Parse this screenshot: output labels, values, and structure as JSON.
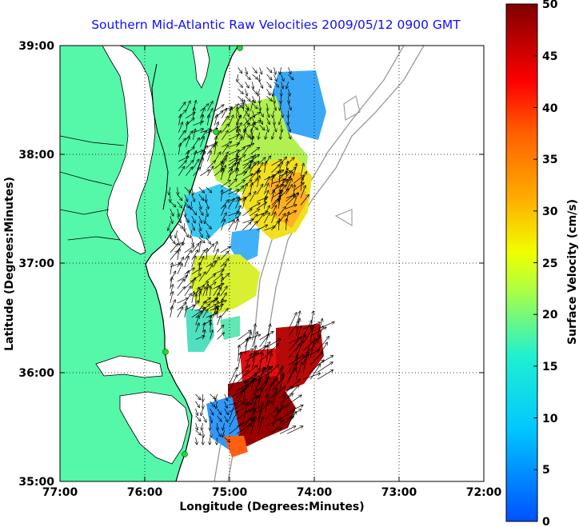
{
  "title": "Southern Mid-Atlantic Raw Velocities 2009/05/12 0900 GMT",
  "xlabel": "Longitude (Degrees:Minutes)",
  "ylabel": "Latitude (Degrees:Minutes)",
  "colorbar_label": "Surface Velocity (cm/s)",
  "x_ticks": [
    "77:00",
    "76:00",
    "75:00",
    "74:00",
    "73:00",
    "72:00"
  ],
  "y_ticks": [
    "39:00",
    "38:00",
    "37:00",
    "36:00",
    "35:00"
  ],
  "colorbar_ticks": [
    "50",
    "45",
    "40",
    "35",
    "30",
    "25",
    "20",
    "15",
    "10",
    "5",
    "0"
  ],
  "colors": {
    "land": "#55f7a9",
    "coastline": "#000000",
    "title": "#1010ff",
    "station": "#22dd22",
    "bathymetry": "#999999"
  },
  "chart_data": {
    "type": "heatmap",
    "title": "Southern Mid-Atlantic Raw Velocities 2009/05/12 0900 GMT",
    "xlabel": "Longitude (Degrees:Minutes)",
    "ylabel": "Latitude (Degrees:Minutes)",
    "xlim": [
      -77,
      -72
    ],
    "ylim": [
      35,
      39
    ],
    "colorbar_range": [
      0,
      50
    ],
    "grid": true,
    "regions": [
      {
        "lon": [
          -75.6,
          -74.7
        ],
        "lat": [
          37.8,
          38.4
        ],
        "speed_cm_s": 22
      },
      {
        "lon": [
          -74.9,
          -74.3
        ],
        "lat": [
          38.2,
          38.8
        ],
        "speed_cm_s": 8
      },
      {
        "lon": [
          -75.7,
          -75.2
        ],
        "lat": [
          37.2,
          37.7
        ],
        "speed_cm_s": 10
      },
      {
        "lon": [
          -75.1,
          -74.3
        ],
        "lat": [
          37.3,
          37.9
        ],
        "speed_cm_s": 24
      },
      {
        "lon": [
          -74.5,
          -74.1
        ],
        "lat": [
          37.5,
          37.8
        ],
        "speed_cm_s": 30
      },
      {
        "lon": [
          -75.7,
          -75.1
        ],
        "lat": [
          36.5,
          37.1
        ],
        "speed_cm_s": 24
      },
      {
        "lon": [
          -75.4,
          -75.1
        ],
        "lat": [
          36.3,
          36.7
        ],
        "speed_cm_s": 17
      },
      {
        "lon": [
          -75.4,
          -75.0
        ],
        "lat": [
          35.4,
          35.8
        ],
        "speed_cm_s": 8
      },
      {
        "lon": [
          -75.0,
          -74.3
        ],
        "lat": [
          35.4,
          35.9
        ],
        "speed_cm_s": 45
      },
      {
        "lon": [
          -74.9,
          -74.5
        ],
        "lat": [
          35.9,
          36.3
        ],
        "speed_cm_s": 40
      },
      {
        "lon": [
          -74.3,
          -73.9
        ],
        "lat": [
          35.9,
          36.4
        ],
        "speed_cm_s": 47
      }
    ]
  }
}
